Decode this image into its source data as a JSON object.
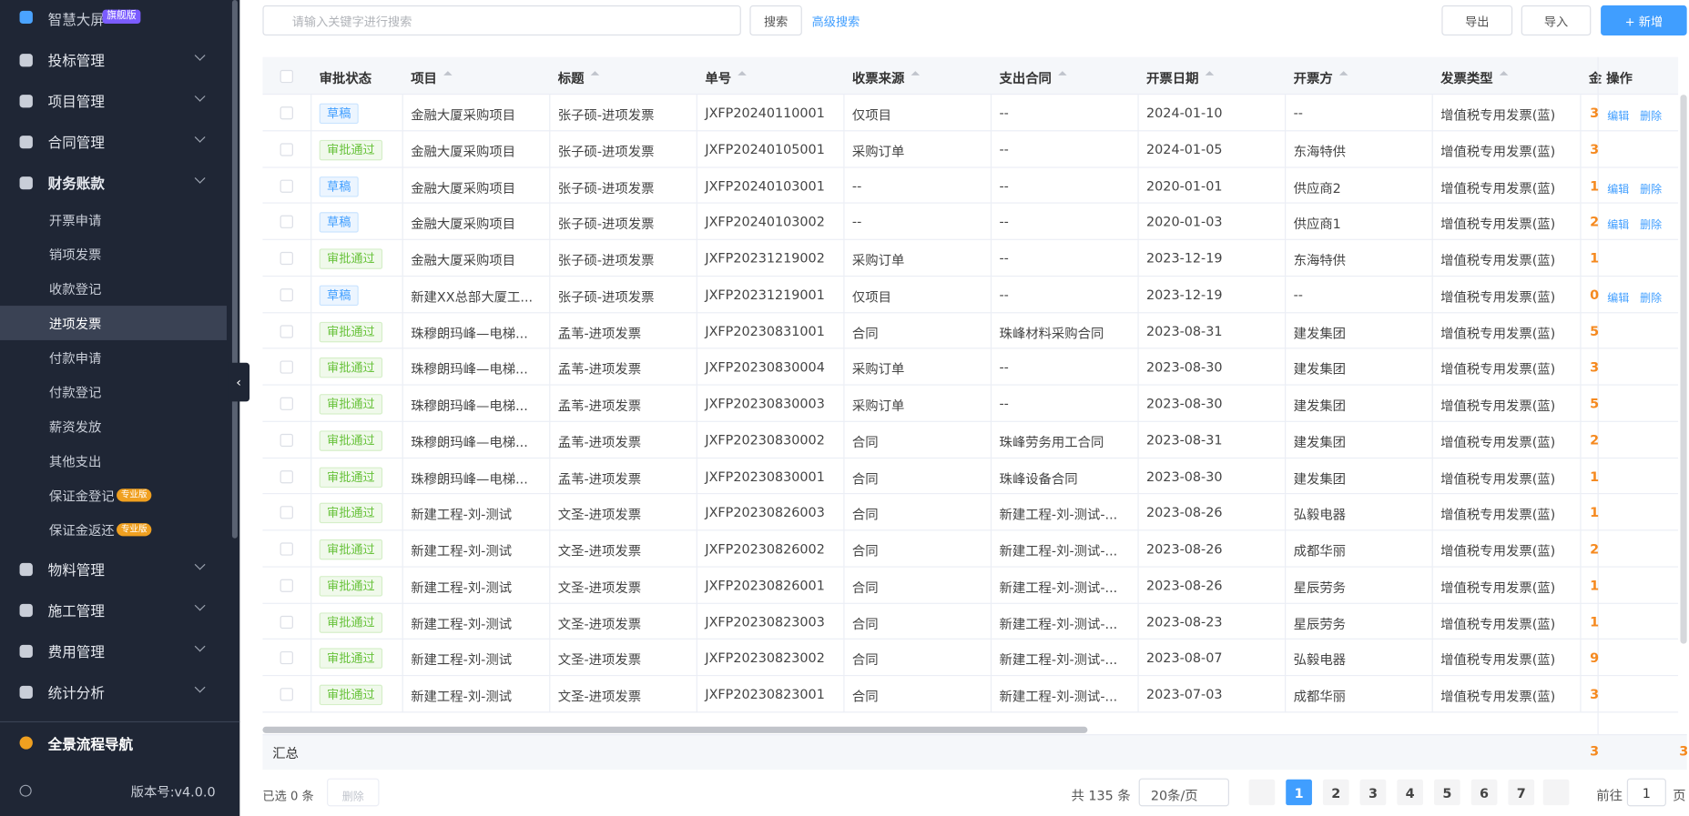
{
  "sidebar": {
    "top": {
      "label": "智慧大屏",
      "badge": "旗舰版"
    },
    "menus": [
      {
        "label": "投标管理"
      },
      {
        "label": "项目管理"
      },
      {
        "label": "合同管理"
      },
      {
        "label": "财务账款"
      }
    ],
    "submenu": [
      {
        "label": "开票申请"
      },
      {
        "label": "销项发票"
      },
      {
        "label": "收款登记"
      },
      {
        "label": "进项发票",
        "active": true
      },
      {
        "label": "付款申请"
      },
      {
        "label": "付款登记"
      },
      {
        "label": "薪资发放"
      },
      {
        "label": "其他支出"
      },
      {
        "label": "保证金登记",
        "badge": "专业版"
      },
      {
        "label": "保证金返还",
        "badge": "专业版"
      }
    ],
    "menus_after": [
      {
        "label": "物料管理"
      },
      {
        "label": "施工管理"
      },
      {
        "label": "费用管理"
      },
      {
        "label": "统计分析"
      }
    ],
    "nav": "全景流程导航",
    "version": "版本号:v4.0.0"
  },
  "toolbar": {
    "search_placeholder": "请输入关键字进行搜索",
    "search": "搜索",
    "advanced": "高级搜索",
    "export": "导出",
    "import": "导入",
    "add": "+ 新增"
  },
  "table": {
    "columns": [
      "审批状态",
      "项目",
      "标题",
      "单号",
      "收票来源",
      "支出合同",
      "开票日期",
      "开票方",
      "发票类型",
      "金",
      "操作"
    ],
    "tag_colors": {
      "草稿": "#409eff",
      "审批通过": "#67c23a"
    },
    "rows": [
      [
        "草稿",
        "金融大厦采购项目",
        "张子硕-进项发票",
        "JXFP20240110001",
        "仅项目",
        "--",
        "2024-01-10",
        "--",
        "增值税专用发票(蓝)",
        "3",
        [
          "编辑",
          "删除"
        ]
      ],
      [
        "审批通过",
        "金融大厦采购项目",
        "张子硕-进项发票",
        "JXFP20240105001",
        "采购订单",
        "--",
        "2024-01-05",
        "东海特供",
        "增值税专用发票(蓝)",
        "3",
        []
      ],
      [
        "草稿",
        "金融大厦采购项目",
        "张子硕-进项发票",
        "JXFP20240103001",
        "--",
        "--",
        "2020-01-01",
        "供应商2",
        "增值税专用发票(蓝)",
        "1",
        [
          "编辑",
          "删除"
        ]
      ],
      [
        "草稿",
        "金融大厦采购项目",
        "张子硕-进项发票",
        "JXFP20240103002",
        "--",
        "--",
        "2020-01-03",
        "供应商1",
        "增值税专用发票(蓝)",
        "2",
        [
          "编辑",
          "删除"
        ]
      ],
      [
        "审批通过",
        "金融大厦采购项目",
        "张子硕-进项发票",
        "JXFP20231219002",
        "采购订单",
        "--",
        "2023-12-19",
        "东海特供",
        "增值税专用发票(蓝)",
        "1",
        []
      ],
      [
        "草稿",
        "新建XX总部大厦工...",
        "张子硕-进项发票",
        "JXFP20231219001",
        "仅项目",
        "--",
        "2023-12-19",
        "--",
        "增值税专用发票(蓝)",
        "0",
        [
          "编辑",
          "删除"
        ]
      ],
      [
        "审批通过",
        "珠穆朗玛峰—电梯...",
        "孟苇-进项发票",
        "JXFP20230831001",
        "合同",
        "珠峰材料采购合同",
        "2023-08-31",
        "建发集团",
        "增值税专用发票(蓝)",
        "5",
        []
      ],
      [
        "审批通过",
        "珠穆朗玛峰—电梯...",
        "孟苇-进项发票",
        "JXFP20230830004",
        "采购订单",
        "--",
        "2023-08-30",
        "建发集团",
        "增值税专用发票(蓝)",
        "3",
        []
      ],
      [
        "审批通过",
        "珠穆朗玛峰—电梯...",
        "孟苇-进项发票",
        "JXFP20230830003",
        "采购订单",
        "--",
        "2023-08-30",
        "建发集团",
        "增值税专用发票(蓝)",
        "5",
        []
      ],
      [
        "审批通过",
        "珠穆朗玛峰—电梯...",
        "孟苇-进项发票",
        "JXFP20230830002",
        "合同",
        "珠峰劳务用工合同",
        "2023-08-31",
        "建发集团",
        "增值税专用发票(蓝)",
        "2",
        []
      ],
      [
        "审批通过",
        "珠穆朗玛峰—电梯...",
        "孟苇-进项发票",
        "JXFP20230830001",
        "合同",
        "珠峰设备合同",
        "2023-08-30",
        "建发集团",
        "增值税专用发票(蓝)",
        "1",
        []
      ],
      [
        "审批通过",
        "新建工程-刘-测试",
        "文圣-进项发票",
        "JXFP20230826003",
        "合同",
        "新建工程-刘-测试-...",
        "2023-08-26",
        "弘毅电器",
        "增值税专用发票(蓝)",
        "1",
        []
      ],
      [
        "审批通过",
        "新建工程-刘-测试",
        "文圣-进项发票",
        "JXFP20230826002",
        "合同",
        "新建工程-刘-测试-...",
        "2023-08-26",
        "成都华丽",
        "增值税专用发票(蓝)",
        "2",
        []
      ],
      [
        "审批通过",
        "新建工程-刘-测试",
        "文圣-进项发票",
        "JXFP20230826001",
        "合同",
        "新建工程-刘-测试-...",
        "2023-08-26",
        "星辰劳务",
        "增值税专用发票(蓝)",
        "1",
        []
      ],
      [
        "审批通过",
        "新建工程-刘-测试",
        "文圣-进项发票",
        "JXFP20230823003",
        "合同",
        "新建工程-刘-测试-...",
        "2023-08-23",
        "星辰劳务",
        "增值税专用发票(蓝)",
        "1",
        []
      ],
      [
        "审批通过",
        "新建工程-刘-测试",
        "文圣-进项发票",
        "JXFP20230823002",
        "合同",
        "新建工程-刘-测试-...",
        "2023-08-07",
        "弘毅电器",
        "增值税专用发票(蓝)",
        "9",
        []
      ],
      [
        "审批通过",
        "新建工程-刘-测试",
        "文圣-进项发票",
        "JXFP20230823001",
        "合同",
        "新建工程-刘-测试-...",
        "2023-07-03",
        "成都华丽",
        "增值税专用发票(蓝)",
        "3",
        []
      ]
    ],
    "summary": {
      "label": "汇总",
      "values": [
        "3",
        "3"
      ]
    }
  },
  "footer": {
    "selected": "已选 0 条",
    "delete": "删除",
    "total": "共 135 条",
    "page_size": "20条/页",
    "pages": [
      "1",
      "2",
      "3",
      "4",
      "5",
      "6",
      "7"
    ],
    "current": 0,
    "goto": "前往",
    "goto_value": "1",
    "goto_unit": "页"
  }
}
